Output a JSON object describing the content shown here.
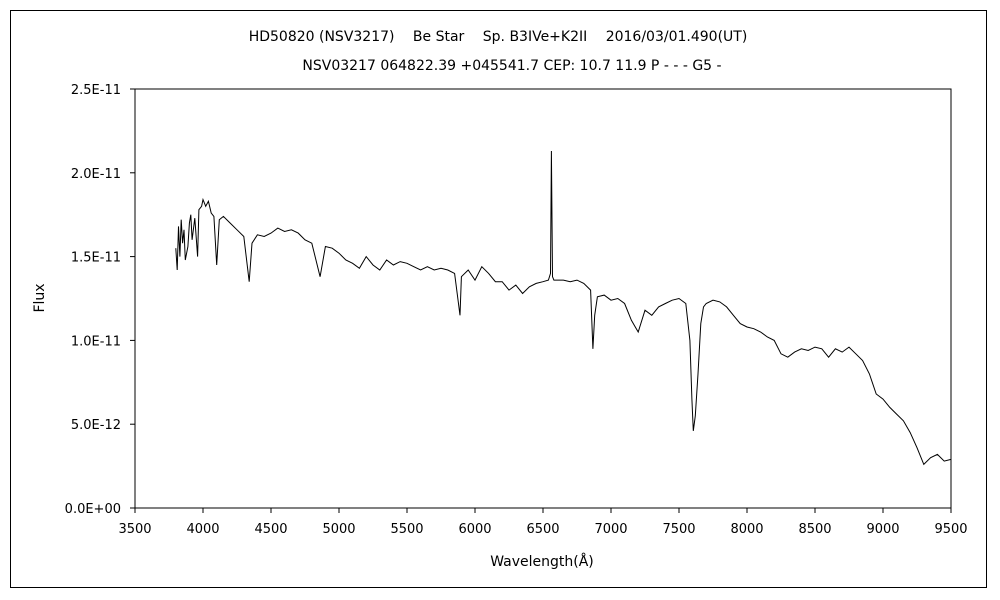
{
  "chart_data": {
    "type": "line",
    "title": "HD50820 (NSV3217)　 Be Star　 Sp. B3IVe+K2II　 2016/03/01.490(UT)",
    "subtitle": "NSV03217 064822.39 +045541.7 CEP: 10.7 11.9  P - - - G5 -",
    "xlabel": "Wavelength(Å)",
    "ylabel": "Flux",
    "xlim": [
      3500,
      9500
    ],
    "ylim": [
      0,
      2.5e-11
    ],
    "x_ticks": [
      3500,
      4000,
      4500,
      5000,
      5500,
      6000,
      6500,
      7000,
      7500,
      8000,
      8500,
      9000,
      9500
    ],
    "x_tick_labels": [
      "3500",
      "4000",
      "4500",
      "5000",
      "5500",
      "6000",
      "6500",
      "7000",
      "7500",
      "8000",
      "8500",
      "9000",
      "9500"
    ],
    "y_ticks": [
      0,
      5e-12,
      1e-11,
      1.5e-11,
      2e-11,
      2.5e-11
    ],
    "y_tick_labels": [
      "0.0E+00",
      "5.0E-12",
      "1.0E-11",
      "1.5E-11",
      "2.0E-11",
      "2.5E-11"
    ],
    "grid": false,
    "legend": "none",
    "line_color": "#000000",
    "series": [
      {
        "x": [
          3800,
          3810,
          3820,
          3830,
          3840,
          3850,
          3860,
          3870,
          3889,
          3900,
          3910,
          3920,
          3940,
          3960,
          3970,
          3990,
          4000,
          4020,
          4040,
          4060,
          4080,
          4101,
          4120,
          4150,
          4200,
          4250,
          4300,
          4340,
          4360,
          4400,
          4450,
          4500,
          4550,
          4600,
          4650,
          4700,
          4750,
          4800,
          4861,
          4900,
          4950,
          5000,
          5050,
          5100,
          5150,
          5200,
          5250,
          5300,
          5350,
          5400,
          5450,
          5500,
          5550,
          5600,
          5650,
          5700,
          5750,
          5800,
          5850,
          5890,
          5900,
          5950,
          6000,
          6050,
          6100,
          6150,
          6200,
          6250,
          6300,
          6350,
          6400,
          6450,
          6500,
          6540,
          6555,
          6562,
          6570,
          6580,
          6600,
          6650,
          6700,
          6750,
          6800,
          6850,
          6867,
          6880,
          6900,
          6950,
          7000,
          7050,
          7100,
          7150,
          7200,
          7250,
          7300,
          7350,
          7400,
          7450,
          7500,
          7550,
          7580,
          7595,
          7605,
          7620,
          7640,
          7660,
          7680,
          7700,
          7750,
          7800,
          7850,
          7900,
          7950,
          8000,
          8050,
          8100,
          8150,
          8200,
          8250,
          8300,
          8350,
          8400,
          8450,
          8500,
          8550,
          8600,
          8650,
          8700,
          8750,
          8800,
          8850,
          8900,
          8950,
          9000,
          9050,
          9100,
          9150,
          9200,
          9250,
          9300,
          9350,
          9400,
          9450,
          9500
        ],
        "y": [
          1.55e-11,
          1.42e-11,
          1.68e-11,
          1.5e-11,
          1.72e-11,
          1.58e-11,
          1.66e-11,
          1.48e-11,
          1.56e-11,
          1.7e-11,
          1.75e-11,
          1.6e-11,
          1.73e-11,
          1.5e-11,
          1.78e-11,
          1.8e-11,
          1.84e-11,
          1.8e-11,
          1.83e-11,
          1.76e-11,
          1.74e-11,
          1.45e-11,
          1.72e-11,
          1.74e-11,
          1.7e-11,
          1.66e-11,
          1.62e-11,
          1.35e-11,
          1.58e-11,
          1.63e-11,
          1.62e-11,
          1.64e-11,
          1.67e-11,
          1.65e-11,
          1.66e-11,
          1.64e-11,
          1.6e-11,
          1.58e-11,
          1.38e-11,
          1.56e-11,
          1.55e-11,
          1.52e-11,
          1.48e-11,
          1.46e-11,
          1.43e-11,
          1.5e-11,
          1.45e-11,
          1.42e-11,
          1.48e-11,
          1.45e-11,
          1.47e-11,
          1.46e-11,
          1.44e-11,
          1.42e-11,
          1.44e-11,
          1.42e-11,
          1.43e-11,
          1.42e-11,
          1.4e-11,
          1.15e-11,
          1.38e-11,
          1.42e-11,
          1.36e-11,
          1.44e-11,
          1.4e-11,
          1.35e-11,
          1.35e-11,
          1.3e-11,
          1.33e-11,
          1.28e-11,
          1.32e-11,
          1.34e-11,
          1.35e-11,
          1.36e-11,
          1.4e-11,
          2.13e-11,
          1.38e-11,
          1.36e-11,
          1.36e-11,
          1.36e-11,
          1.35e-11,
          1.36e-11,
          1.34e-11,
          1.3e-11,
          9.5e-12,
          1.15e-11,
          1.26e-11,
          1.27e-11,
          1.24e-11,
          1.25e-11,
          1.22e-11,
          1.12e-11,
          1.05e-11,
          1.18e-11,
          1.15e-11,
          1.2e-11,
          1.22e-11,
          1.24e-11,
          1.25e-11,
          1.22e-11,
          1e-11,
          6.5e-12,
          4.6e-12,
          5.5e-12,
          8e-12,
          1.1e-11,
          1.2e-11,
          1.22e-11,
          1.24e-11,
          1.23e-11,
          1.2e-11,
          1.15e-11,
          1.1e-11,
          1.08e-11,
          1.07e-11,
          1.05e-11,
          1.02e-11,
          1e-11,
          9.2e-12,
          9e-12,
          9.3e-12,
          9.5e-12,
          9.4e-12,
          9.6e-12,
          9.5e-12,
          9e-12,
          9.5e-12,
          9.3e-12,
          9.6e-12,
          9.2e-12,
          8.8e-12,
          8e-12,
          6.8e-12,
          6.5e-12,
          6e-12,
          5.6e-12,
          5.2e-12,
          4.5e-12,
          3.6e-12,
          2.6e-12,
          3e-12,
          3.2e-12,
          2.8e-12,
          2.9e-12
        ]
      }
    ]
  }
}
